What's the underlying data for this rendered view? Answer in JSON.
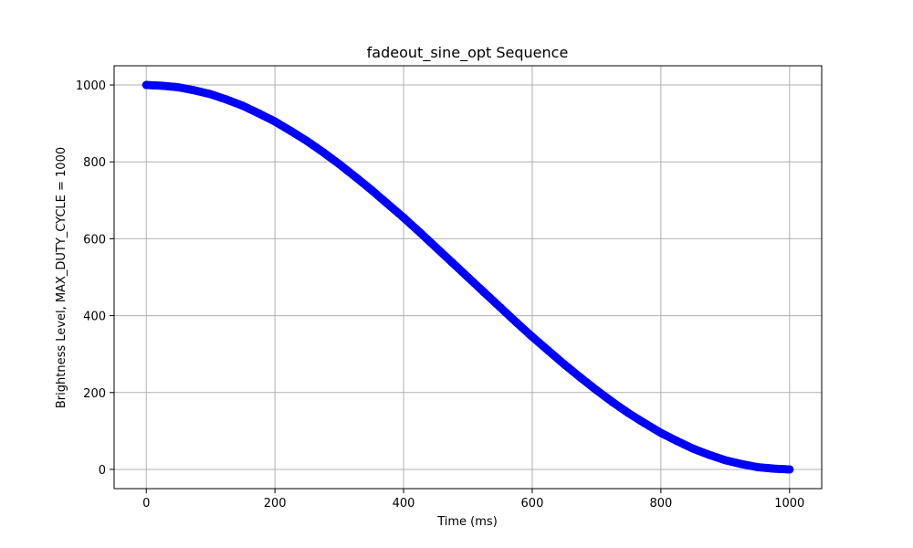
{
  "chart_data": {
    "type": "scatter",
    "title": "fadeout_sine_opt Sequence",
    "xlabel": "Time (ms)",
    "ylabel": "Brightness Level, MAX_DUTY_CYCLE = 1000",
    "xlim": [
      -50,
      1050
    ],
    "ylim": [
      -50,
      1050
    ],
    "x_ticks": [
      0,
      200,
      400,
      600,
      800,
      1000
    ],
    "y_ticks": [
      0,
      200,
      400,
      600,
      800,
      1000
    ],
    "x_tick_labels": [
      "0",
      "200",
      "400",
      "600",
      "800",
      "1000"
    ],
    "y_tick_labels": [
      "0",
      "200",
      "400",
      "600",
      "800",
      "1000"
    ],
    "grid": true,
    "marker_color": "#0000ff",
    "series": [
      {
        "x": [
          0,
          25,
          50,
          75,
          100,
          125,
          150,
          175,
          200,
          225,
          250,
          275,
          300,
          325,
          350,
          375,
          400,
          425,
          450,
          475,
          500,
          525,
          550,
          575,
          600,
          625,
          650,
          675,
          700,
          725,
          750,
          775,
          800,
          825,
          850,
          875,
          900,
          925,
          950,
          975,
          1000
        ],
        "y": [
          1000,
          998,
          994,
          986,
          976,
          962,
          946,
          926,
          905,
          880,
          854,
          825,
          794,
          761,
          727,
          691,
          655,
          617,
          578,
          539,
          500,
          461,
          422,
          383,
          345,
          309,
          273,
          239,
          206,
          175,
          146,
          120,
          95,
          74,
          54,
          38,
          24,
          14,
          6,
          2,
          0
        ]
      }
    ]
  }
}
